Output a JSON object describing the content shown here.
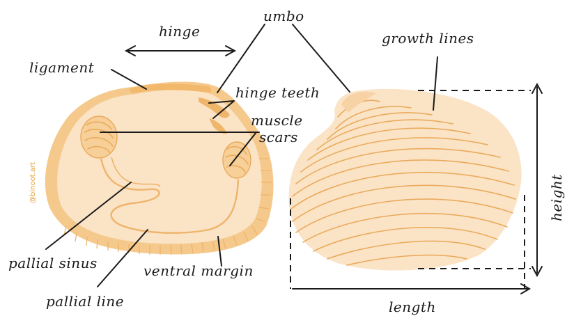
{
  "labels": {
    "hinge": "hinge",
    "umbo": "umbo",
    "growth_lines": "growth lines",
    "ligament": "ligament",
    "hinge_teeth": "hinge teeth",
    "muscle": "muscle",
    "scars": "scars",
    "pallial_sinus": "pallial sinus",
    "ventral_margin": "ventral margin",
    "pallial_line": "pallial line",
    "length": "length",
    "height": "height"
  },
  "watermark": "@binoot.art",
  "colors": {
    "shell_fill": "#fbe3c6",
    "shell_edge": "#f5c98c",
    "growth_line": "#e9ab5c",
    "ink": "#1a1a1a"
  }
}
